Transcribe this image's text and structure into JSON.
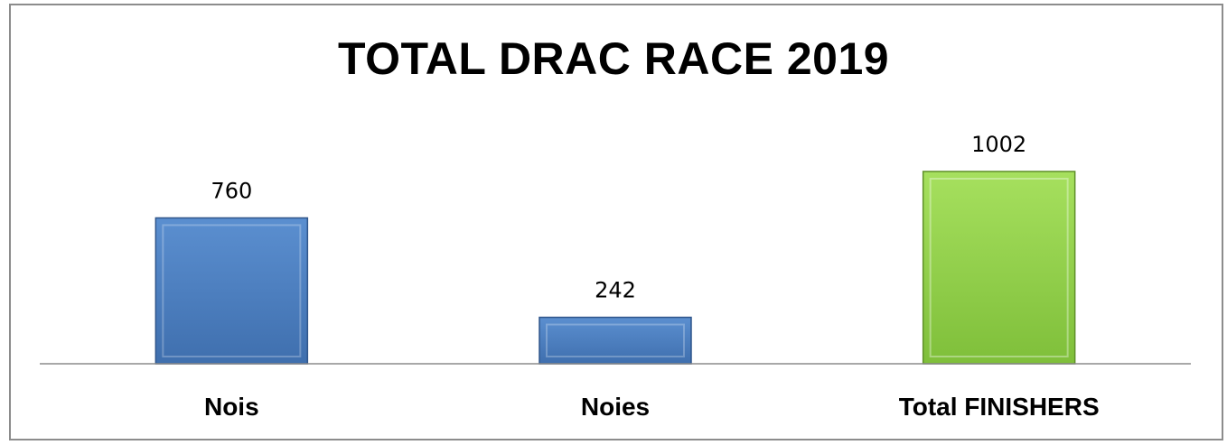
{
  "chart_data": {
    "type": "bar",
    "title": "TOTAL DRAC RACE 2019",
    "categories": [
      "Nois",
      "Noies",
      "Total FINISHERS"
    ],
    "values": [
      760,
      242,
      1002
    ],
    "colors": [
      "#4f81bd",
      "#4f81bd",
      "#92d050"
    ],
    "ylim": [
      0,
      1190
    ],
    "grid": false,
    "legend": "none"
  }
}
